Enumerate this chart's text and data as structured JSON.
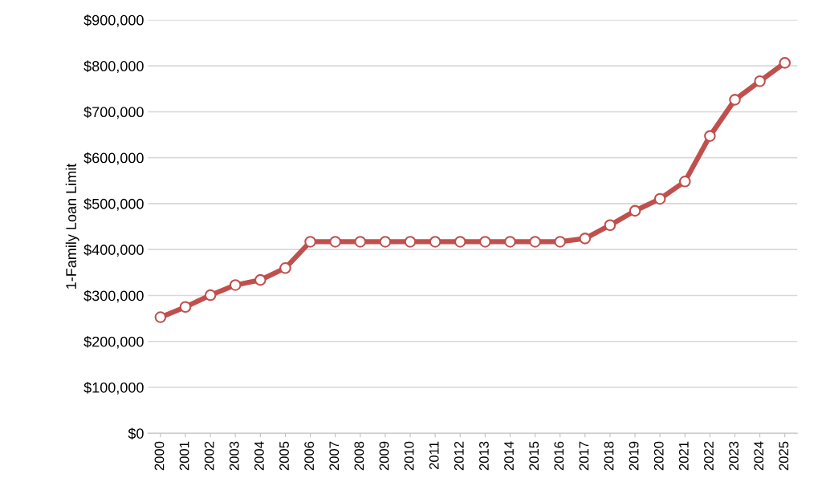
{
  "chart_data": {
    "type": "line",
    "ylabel": "1-Family Loan Limit",
    "categories": [
      "2000",
      "2001",
      "2002",
      "2003",
      "2004",
      "2005",
      "2006",
      "2007",
      "2008",
      "2009",
      "2010",
      "2011",
      "2012",
      "2013",
      "2014",
      "2015",
      "2016",
      "2017",
      "2018",
      "2019",
      "2020",
      "2021",
      "2022",
      "2023",
      "2024",
      "2025"
    ],
    "series": [
      {
        "color": "#c0504d",
        "values": [
          252700,
          275000,
          300700,
          322700,
          333700,
          359650,
          417000,
          417000,
          417000,
          417000,
          417000,
          417000,
          417000,
          417000,
          417000,
          417000,
          417000,
          424100,
          453100,
          484350,
          510400,
          548250,
          647200,
          726200,
          766550,
          806500
        ]
      }
    ],
    "ylim": [
      0,
      900000
    ],
    "yticks": [
      {
        "value": 0,
        "label": "$0"
      },
      {
        "value": 100000,
        "label": "$100,000"
      },
      {
        "value": 200000,
        "label": "$200,000"
      },
      {
        "value": 300000,
        "label": "$300,000"
      },
      {
        "value": 400000,
        "label": "$400,000"
      },
      {
        "value": 500000,
        "label": "$500,000"
      },
      {
        "value": 600000,
        "label": "$600,000"
      },
      {
        "value": 700000,
        "label": "$700,000"
      },
      {
        "value": 800000,
        "label": "$800,000"
      },
      {
        "value": 900000,
        "label": "$900,000"
      }
    ],
    "grid": "y",
    "marker": "circle",
    "line_style": "solid"
  }
}
